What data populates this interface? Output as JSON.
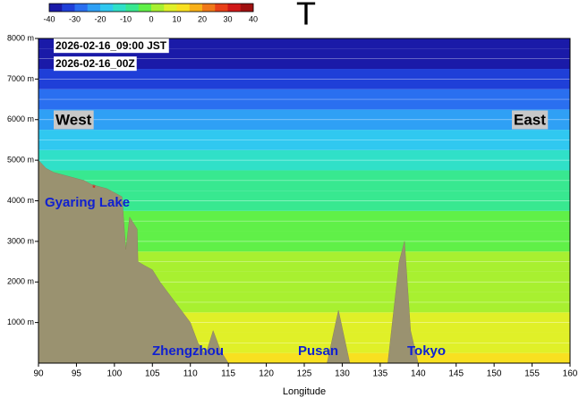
{
  "chart_data": {
    "type": "cross-section",
    "title": "T",
    "x_label": "Longitude",
    "xlim": [
      90,
      160
    ],
    "xticks": [
      90,
      95,
      100,
      105,
      110,
      115,
      120,
      125,
      130,
      135,
      140,
      145,
      150,
      155,
      160
    ],
    "ylim": [
      0,
      8000
    ],
    "yticks": [
      {
        "value": 1000,
        "label": "1000 m"
      },
      {
        "value": 2000,
        "label": "2000 m"
      },
      {
        "value": 3000,
        "label": "3000 m"
      },
      {
        "value": 4000,
        "label": "4000 m"
      },
      {
        "value": 5000,
        "label": "5000 m"
      },
      {
        "value": 6000,
        "label": "6000 m"
      },
      {
        "value": 7000,
        "label": "7000 m"
      },
      {
        "value": 8000,
        "label": "8000 m"
      }
    ],
    "colorbar": {
      "lim": [
        -40,
        40
      ],
      "ticks": [
        -40,
        -30,
        -20,
        -10,
        0,
        10,
        20,
        30,
        40
      ],
      "colors": [
        "#1a1aa8",
        "#1f3fd8",
        "#2a6ff0",
        "#2fa0f5",
        "#30c8f0",
        "#30e0c8",
        "#38e890",
        "#60f048",
        "#a8f030",
        "#e0f028",
        "#f8e020",
        "#f8b018",
        "#f07818",
        "#e84018",
        "#d01818",
        "#a01010"
      ]
    },
    "temperature_profile": {
      "heights": [
        0,
        500,
        1000,
        1500,
        2000,
        2500,
        3000,
        3500,
        4000,
        4500,
        5000,
        5500,
        6000,
        6500,
        7000,
        7500,
        8000
      ],
      "values": [
        12,
        9,
        6,
        4,
        2,
        0,
        -2,
        -4,
        -7,
        -10,
        -14,
        -18,
        -23,
        -28,
        -33,
        -38,
        -42
      ]
    },
    "terrain": {
      "x": [
        90,
        91,
        92,
        94,
        96,
        97,
        99,
        100,
        101,
        101.5,
        102,
        103,
        103.1,
        104,
        105,
        106,
        108,
        110,
        111,
        112,
        113,
        114,
        115,
        128,
        129.5,
        131,
        136,
        137.5,
        138.2,
        139,
        140,
        160
      ],
      "values": [
        5000,
        4800,
        4700,
        4600,
        4500,
        4400,
        4300,
        4200,
        4100,
        2800,
        3600,
        3300,
        2500,
        2400,
        2300,
        2000,
        1500,
        1000,
        500,
        200,
        800,
        300,
        0,
        0,
        1300,
        0,
        0,
        2500,
        3000,
        800,
        0,
        0
      ]
    },
    "marker": {
      "x": 97.3,
      "y": 4300
    },
    "annotations": [
      "2026-02-16_09:00 JST",
      "2026-02-16_00Z",
      "West",
      "East",
      "Gyaring Lake",
      "Zhengzhou",
      "Pusan",
      "Tokyo"
    ]
  }
}
